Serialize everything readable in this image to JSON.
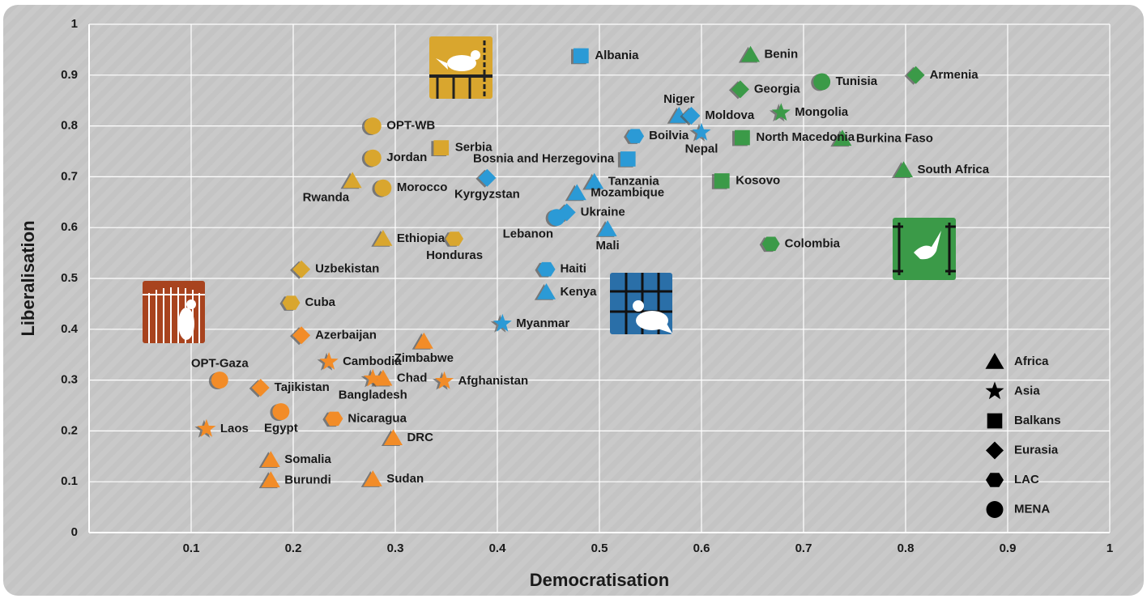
{
  "chart_data": {
    "type": "scatter",
    "xlabel": "Democratisation",
    "ylabel": "Liberalisation",
    "xlim": [
      0,
      1
    ],
    "ylim": [
      0,
      1
    ],
    "xticks": [
      0.1,
      0.2,
      0.3,
      0.4,
      0.5,
      0.6,
      0.7,
      0.8,
      0.9,
      1
    ],
    "yticks": [
      0,
      0.1,
      0.2,
      0.3,
      0.4,
      0.5,
      0.6,
      0.7,
      0.8,
      0.9,
      1
    ],
    "grid": true,
    "legend": "lower right",
    "series": [
      {
        "name": "Africa",
        "marker": "triangle",
        "color": "#000000",
        "labels": [
          "Benin",
          "Burkina Faso",
          "South Africa",
          "Niger",
          "Tanzania",
          "Mozambique",
          "Mali",
          "Kenya",
          "Rwanda",
          "Ethiopia",
          "Zimbabwe",
          "Chad",
          "DRC",
          "Somalia",
          "Burundi",
          "Sudan"
        ],
        "x": [
          0.648,
          0.738,
          0.798,
          0.578,
          0.495,
          0.478,
          0.508,
          0.448,
          0.258,
          0.288,
          0.328,
          0.288,
          0.298,
          0.178,
          0.178,
          0.278
        ],
        "values": [
          0.94,
          0.775,
          0.713,
          0.82,
          0.69,
          0.668,
          0.597,
          0.473,
          0.692,
          0.578,
          0.376,
          0.303,
          0.186,
          0.143,
          0.103,
          0.105
        ],
        "colors": [
          "#3b9a48",
          "#3b9a48",
          "#3b9a48",
          "#2b9ad6",
          "#2b9ad6",
          "#2b9ad6",
          "#2b9ad6",
          "#2b9ad6",
          "#d9a62e",
          "#d9a62e",
          "#f28c28",
          "#f28c28",
          "#f28c28",
          "#f28c28",
          "#f28c28",
          "#f28c28"
        ]
      },
      {
        "name": "Asia",
        "marker": "star",
        "color": "#000000",
        "labels": [
          "Mongolia",
          "Nepal",
          "Myanmar",
          "Cambodia",
          "Bangladesh",
          "Afghanistan",
          "Laos"
        ],
        "x": [
          0.678,
          0.6,
          0.405,
          0.235,
          0.278,
          0.348,
          0.115
        ],
        "values": [
          0.826,
          0.787,
          0.411,
          0.336,
          0.303,
          0.298,
          0.204
        ],
        "colors": [
          "#3b9a48",
          "#2b9ad6",
          "#2b9ad6",
          "#f28c28",
          "#f28c28",
          "#f28c28",
          "#f28c28"
        ]
      },
      {
        "name": "Balkans",
        "marker": "square",
        "color": "#000000",
        "labels": [
          "Albania",
          "Serbia",
          "Bosnia and Herzegovina",
          "North Macedonia",
          "Kosovo"
        ],
        "x": [
          0.482,
          0.345,
          0.528,
          0.64,
          0.62
        ],
        "values": [
          0.938,
          0.757,
          0.735,
          0.777,
          0.692
        ],
        "colors": [
          "#2b9ad6",
          "#d9a62e",
          "#2b9ad6",
          "#3b9a48",
          "#3b9a48"
        ]
      },
      {
        "name": "Eurasia",
        "marker": "diamond",
        "color": "#000000",
        "labels": [
          "Armenia",
          "Georgia",
          "Moldova",
          "Kyrgyzstan",
          "Ukraine",
          "Uzbekistan",
          "Azerbaijan",
          "Tajikistan"
        ],
        "x": [
          0.81,
          0.638,
          0.59,
          0.39,
          0.468,
          0.208,
          0.208,
          0.168
        ],
        "values": [
          0.9,
          0.872,
          0.82,
          0.698,
          0.63,
          0.518,
          0.388,
          0.285
        ],
        "colors": [
          "#3b9a48",
          "#3b9a48",
          "#2b9ad6",
          "#2b9ad6",
          "#2b9ad6",
          "#d9a62e",
          "#f28c28",
          "#f28c28"
        ]
      },
      {
        "name": "LAC",
        "marker": "hexagon",
        "color": "#000000",
        "labels": [
          "Boilvia",
          "Colombia",
          "Haiti",
          "Honduras",
          "Cuba",
          "Nicaragua"
        ],
        "x": [
          0.535,
          0.668,
          0.448,
          0.358,
          0.198,
          0.24
        ],
        "values": [
          0.78,
          0.568,
          0.518,
          0.578,
          0.452,
          0.224
        ],
        "colors": [
          "#2b9ad6",
          "#3b9a48",
          "#2b9ad6",
          "#d9a62e",
          "#d9a62e",
          "#f28c28"
        ]
      },
      {
        "name": "MENA",
        "marker": "circle",
        "color": "#000000",
        "labels": [
          "Tunisia",
          "OPT-WB",
          "Jordan",
          "Morocco",
          "Lebanon",
          "OPT-Gaza",
          "Egypt"
        ],
        "x": [
          0.718,
          0.278,
          0.278,
          0.288,
          0.458,
          0.128,
          0.188
        ],
        "values": [
          0.887,
          0.8,
          0.737,
          0.678,
          0.62,
          0.3,
          0.238
        ],
        "colors": [
          "#3b9a48",
          "#d9a62e",
          "#d9a62e",
          "#d9a62e",
          "#2b9ad6",
          "#f28c28",
          "#f28c28"
        ]
      }
    ]
  }
}
